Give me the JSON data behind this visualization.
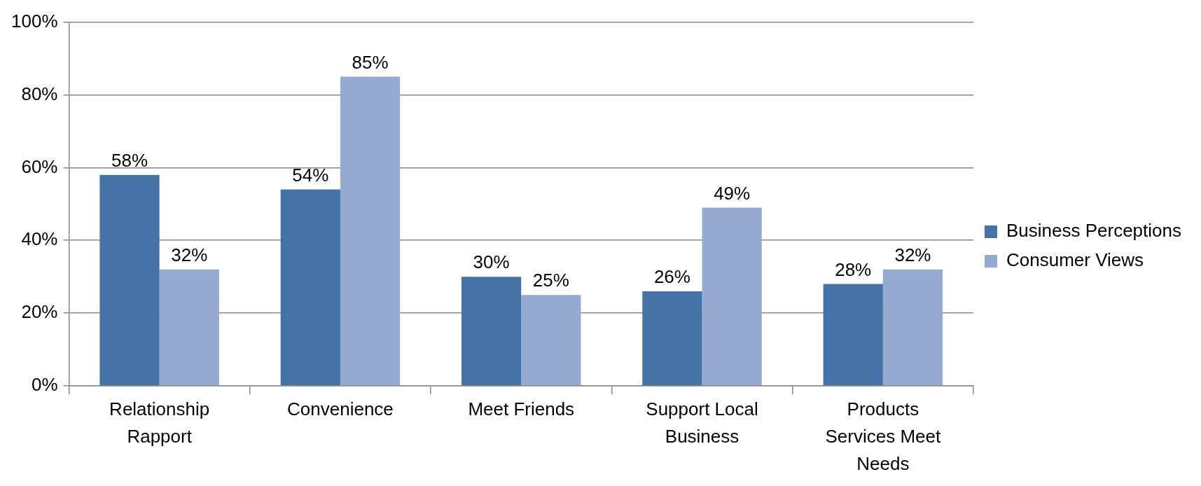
{
  "chart_data": {
    "type": "bar",
    "categories": [
      "Relationship Rapport",
      "Convenience",
      "Meet Friends",
      "Support Local Business",
      "Products Services Meet Needs"
    ],
    "series": [
      {
        "name": "Business Perceptions",
        "color": "#4573a7",
        "values": [
          58,
          54,
          30,
          26,
          28
        ],
        "value_labels": [
          "58%",
          "54%",
          "30%",
          "26%",
          "28%"
        ]
      },
      {
        "name": "Consumer Views",
        "color": "#95aad1",
        "values": [
          32,
          85,
          25,
          49,
          32
        ],
        "value_labels": [
          "32%",
          "85%",
          "25%",
          "49%",
          "32%"
        ]
      }
    ],
    "ylim": [
      0,
      100
    ],
    "yticks": [
      {
        "value": 0,
        "label": "0%"
      },
      {
        "value": 20,
        "label": "20%"
      },
      {
        "value": 40,
        "label": "40%"
      },
      {
        "value": 60,
        "label": "60%"
      },
      {
        "value": 80,
        "label": "80%"
      },
      {
        "value": 100,
        "label": "100%"
      }
    ],
    "grid": "y",
    "legend": "right"
  }
}
